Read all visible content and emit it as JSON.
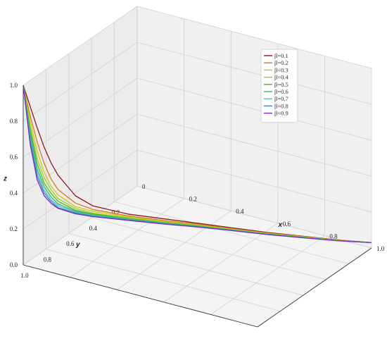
{
  "chart_data": {
    "type": "line",
    "projection": "3d",
    "x": [
      0.0,
      0.02,
      0.04,
      0.06,
      0.08,
      0.1,
      0.15,
      0.2,
      0.3,
      0.4,
      0.5,
      0.6,
      0.7,
      0.8,
      0.9,
      1.0
    ],
    "y": [
      1.0,
      0.98,
      0.96,
      0.94,
      0.92,
      0.9,
      0.85,
      0.8,
      0.7,
      0.6,
      0.5,
      0.4,
      0.3,
      0.2,
      0.1,
      0.0
    ],
    "series": [
      {
        "name": "β=0.1",
        "color": "#8b1a1a",
        "z": [
          1.0,
          0.88,
          0.76,
          0.65,
          0.56,
          0.49,
          0.37,
          0.31,
          0.255,
          0.22,
          0.185,
          0.15,
          0.115,
          0.085,
          0.055,
          0.03
        ]
      },
      {
        "name": "β=0.2",
        "color": "#d97a1c",
        "z": [
          1.0,
          0.83,
          0.68,
          0.56,
          0.47,
          0.41,
          0.33,
          0.29,
          0.245,
          0.21,
          0.18,
          0.145,
          0.112,
          0.083,
          0.054,
          0.03
        ]
      },
      {
        "name": "β=0.3",
        "color": "#c8c81e",
        "z": [
          1.0,
          0.8,
          0.63,
          0.51,
          0.43,
          0.38,
          0.31,
          0.28,
          0.24,
          0.205,
          0.175,
          0.142,
          0.11,
          0.082,
          0.053,
          0.03
        ]
      },
      {
        "name": "β=0.4",
        "color": "#9acd32",
        "z": [
          1.0,
          0.77,
          0.59,
          0.48,
          0.41,
          0.36,
          0.3,
          0.27,
          0.235,
          0.2,
          0.172,
          0.14,
          0.108,
          0.08,
          0.052,
          0.03
        ]
      },
      {
        "name": "β=0.5",
        "color": "#4cbb17",
        "z": [
          1.0,
          0.75,
          0.56,
          0.45,
          0.39,
          0.345,
          0.29,
          0.265,
          0.23,
          0.198,
          0.17,
          0.138,
          0.107,
          0.079,
          0.052,
          0.03
        ]
      },
      {
        "name": "β=0.6",
        "color": "#3cb371",
        "z": [
          1.0,
          0.73,
          0.53,
          0.43,
          0.37,
          0.33,
          0.285,
          0.26,
          0.228,
          0.196,
          0.168,
          0.137,
          0.106,
          0.078,
          0.051,
          0.03
        ]
      },
      {
        "name": "β=0.7",
        "color": "#40c4c4",
        "z": [
          1.0,
          0.71,
          0.51,
          0.41,
          0.355,
          0.32,
          0.28,
          0.255,
          0.225,
          0.194,
          0.166,
          0.136,
          0.105,
          0.078,
          0.051,
          0.03
        ]
      },
      {
        "name": "β=0.8",
        "color": "#3f7fd0",
        "z": [
          1.0,
          0.69,
          0.49,
          0.395,
          0.345,
          0.31,
          0.275,
          0.252,
          0.222,
          0.192,
          0.165,
          0.135,
          0.104,
          0.077,
          0.05,
          0.03
        ]
      },
      {
        "name": "β=0.9",
        "color": "#7b2fbe",
        "z": [
          1.0,
          0.67,
          0.47,
          0.38,
          0.335,
          0.305,
          0.27,
          0.25,
          0.22,
          0.19,
          0.164,
          0.134,
          0.103,
          0.076,
          0.05,
          0.03
        ]
      }
    ],
    "xlabel": "x",
    "ylabel": "y",
    "zlabel": "z",
    "xlim": [
      0,
      1
    ],
    "ylim": [
      0,
      1
    ],
    "zlim": [
      0,
      1
    ],
    "xticks": [
      "0",
      "0.2",
      "0.4",
      "0.6",
      "0.8",
      "1.0"
    ],
    "yticks": [
      "0.2",
      "0.4",
      "0.6",
      "0.8",
      "1.0"
    ],
    "zticks": [
      "0.0",
      "0.2",
      "0.4",
      "0.6",
      "0.8",
      "1.0"
    ],
    "grid": true,
    "legend": "top-right"
  }
}
